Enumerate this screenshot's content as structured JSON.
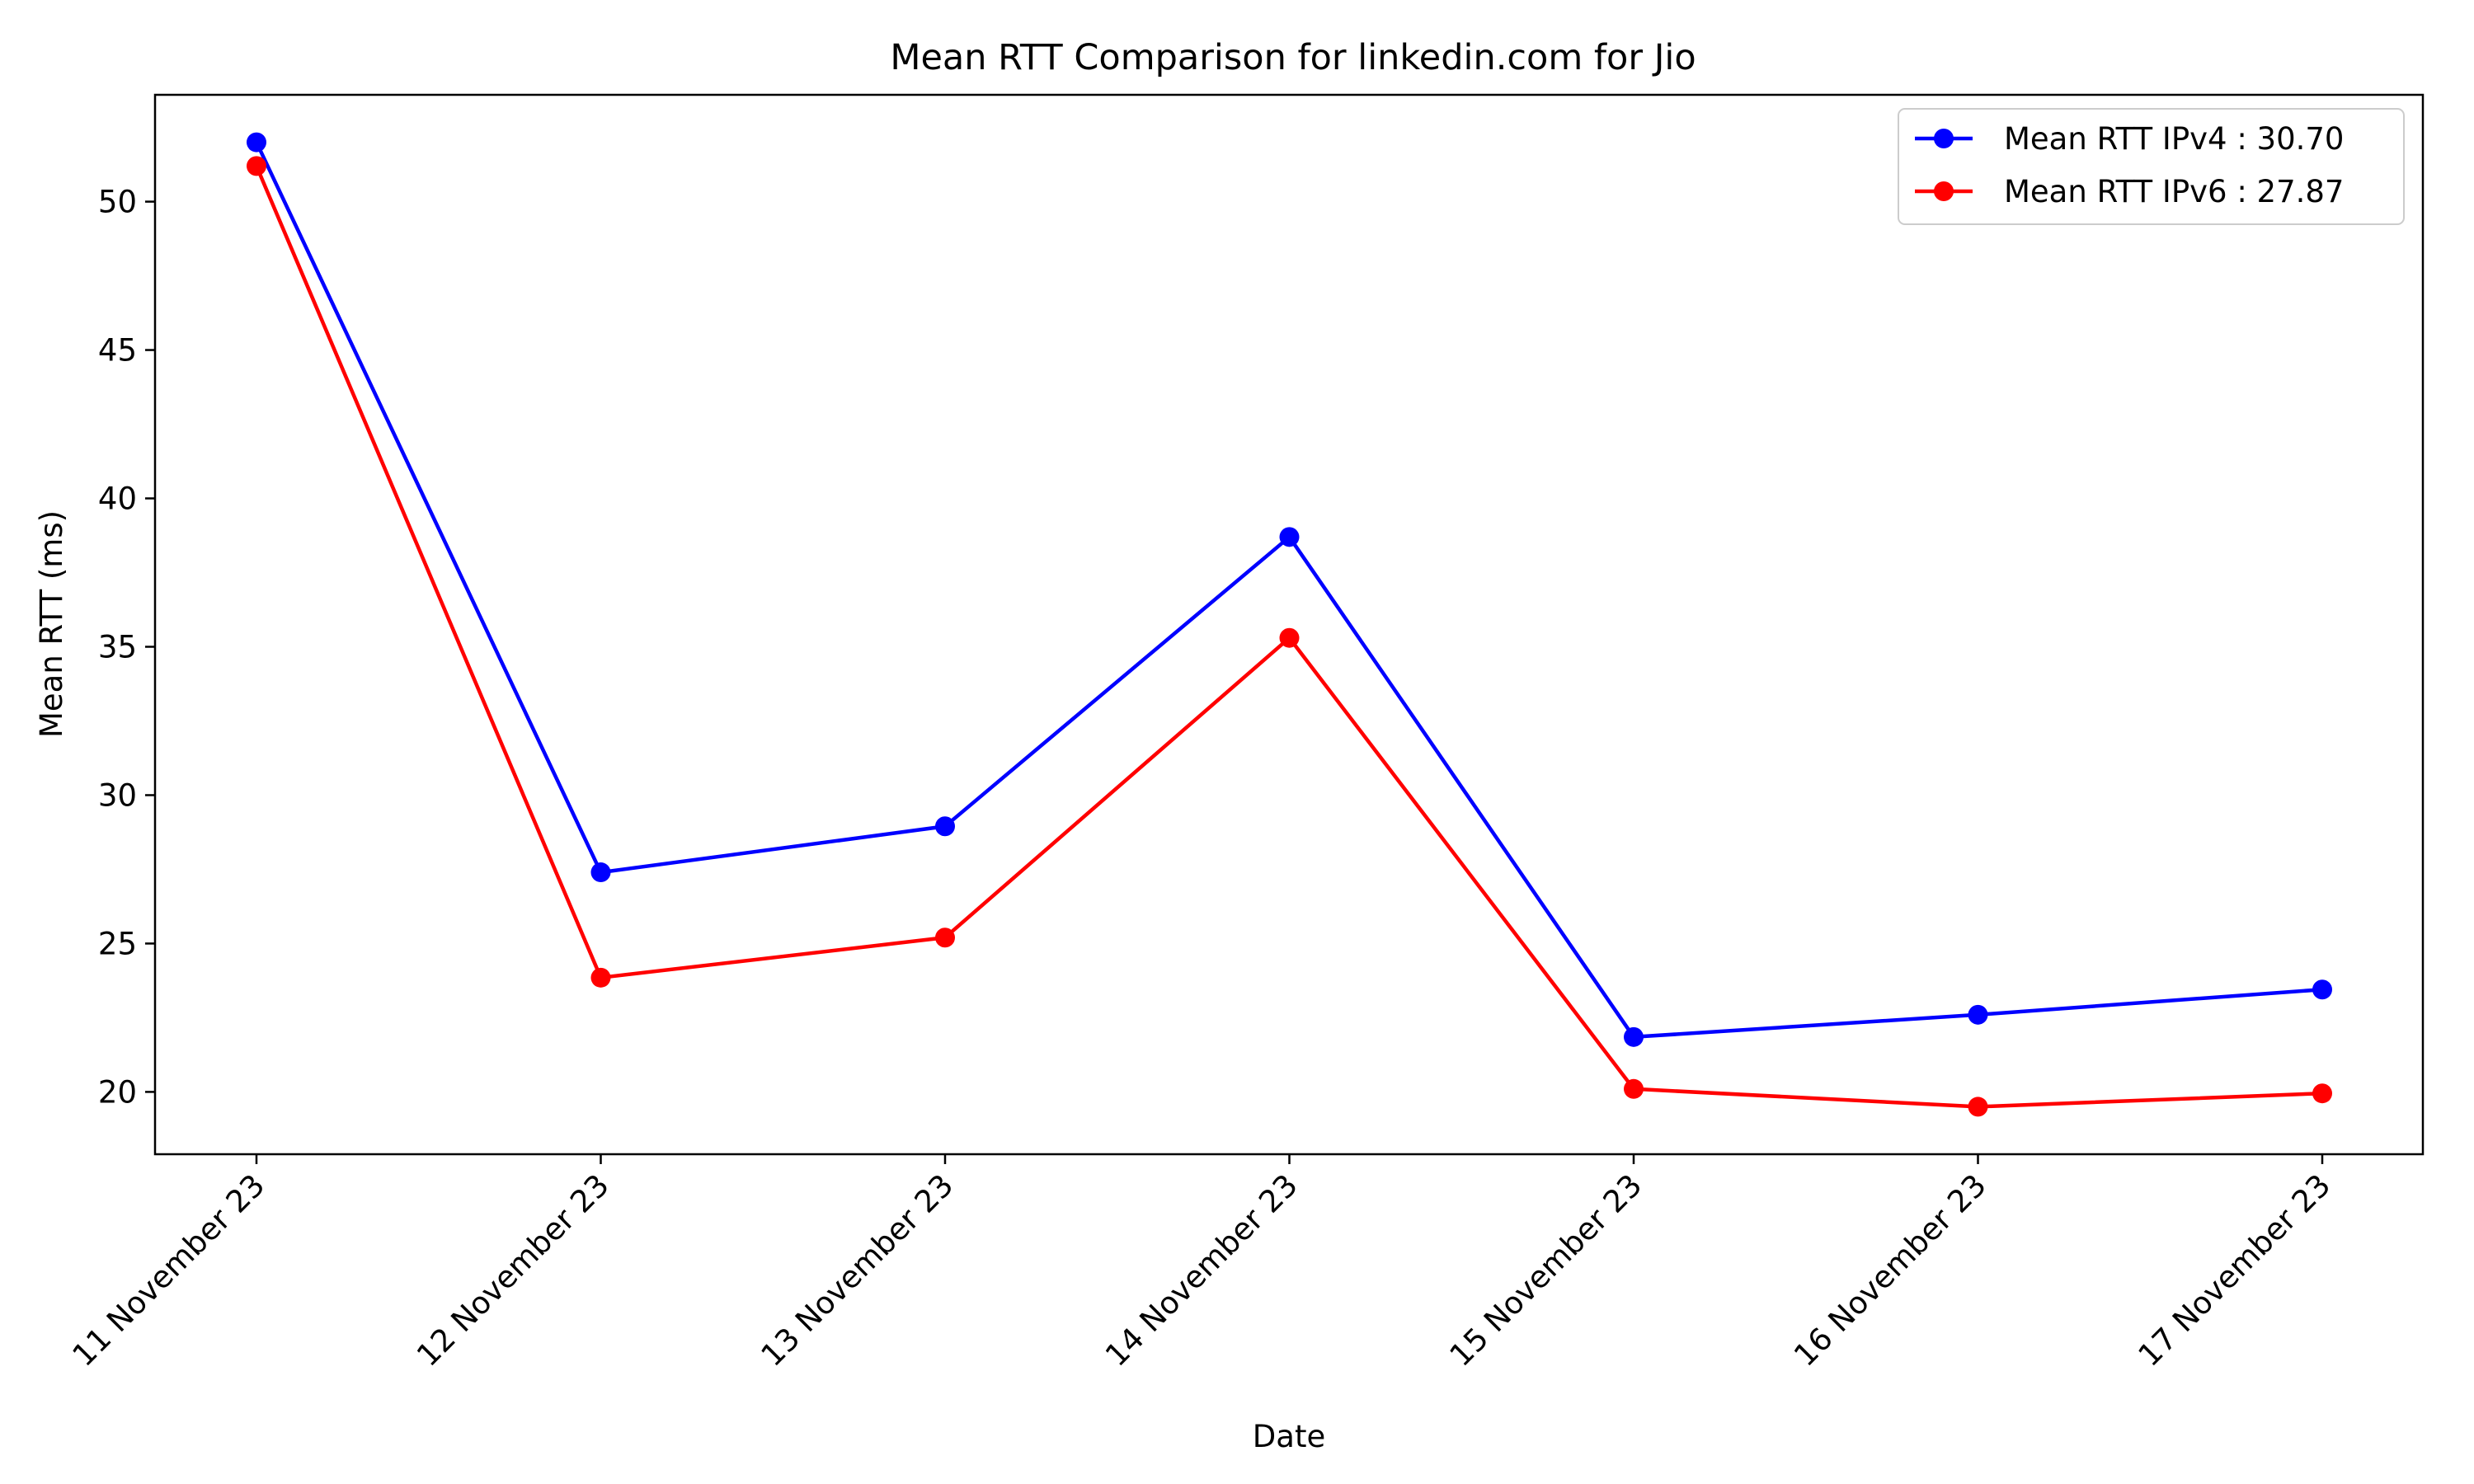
{
  "chart_data": {
    "type": "line",
    "title": "Mean RTT Comparison for linkedin.com for Jio",
    "xlabel": "Date",
    "ylabel": "Mean RTT (ms)",
    "categories": [
      "11 November 23",
      "12 November 23",
      "13 November 23",
      "14 November 23",
      "15 November 23",
      "16 November 23",
      "17 November 23"
    ],
    "ylim": [
      17.9,
      53.6
    ],
    "yticks": [
      20,
      25,
      30,
      35,
      40,
      45,
      50
    ],
    "grid": false,
    "legend_position": "top-right",
    "series": [
      {
        "name": "Mean RTT IPv4 : 30.70",
        "color": "#0000ff",
        "marker": "circle",
        "values": [
          52.0,
          27.4,
          28.95,
          38.7,
          21.85,
          22.6,
          23.45
        ]
      },
      {
        "name": "Mean RTT IPv6 : 27.87",
        "color": "#ff0000",
        "marker": "circle",
        "values": [
          51.2,
          23.85,
          25.2,
          35.3,
          20.1,
          19.5,
          19.95
        ]
      }
    ]
  }
}
